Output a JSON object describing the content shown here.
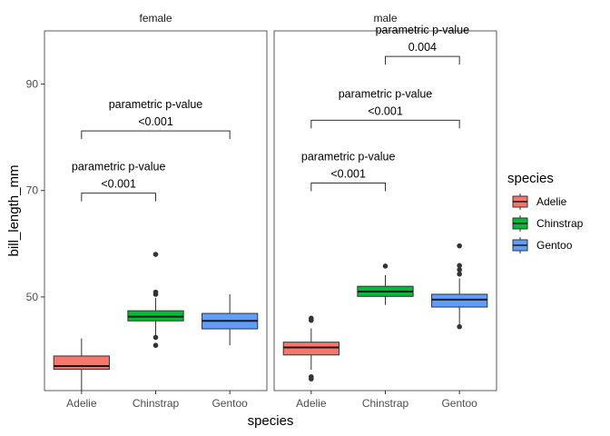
{
  "chart_data": {
    "type": "box",
    "xlabel": "species",
    "ylabel": "bill_length_mm",
    "ylim": [
      32.4,
      100
    ],
    "yticks": [
      50,
      70,
      90
    ],
    "categories": [
      "Adelie",
      "Chinstrap",
      "Gentoo"
    ],
    "legend": {
      "title": "species",
      "position": "right",
      "entries": [
        {
          "label": "Adelie",
          "color": "#F8766D"
        },
        {
          "label": "Chinstrap",
          "color": "#00BA38"
        },
        {
          "label": "Gentoo",
          "color": "#619CFF"
        }
      ]
    },
    "panels": [
      {
        "name": "female",
        "boxes": [
          {
            "category": "Adelie",
            "min": 32.1,
            "q1": 36.4,
            "median": 37.0,
            "q3": 38.9,
            "max": 42.2,
            "outliers": []
          },
          {
            "category": "Chinstrap",
            "min": 42.5,
            "q1": 45.5,
            "median": 46.3,
            "q3": 47.4,
            "max": 49.8,
            "outliers": [
              40.9,
              42.4,
              50.5,
              50.9,
              58.0
            ]
          },
          {
            "category": "Gentoo",
            "min": 40.9,
            "q1": 44.0,
            "median": 45.5,
            "q3": 46.9,
            "max": 50.5,
            "outliers": []
          }
        ],
        "comparisons": [
          {
            "from": "Adelie",
            "to": "Chinstrap",
            "y": 69.5,
            "label_top": "parametric p-value",
            "label_bottom": "<0.001"
          },
          {
            "from": "Adelie",
            "to": "Gentoo",
            "y": 81.2,
            "label_top": "parametric p-value",
            "label_bottom": "<0.001"
          }
        ]
      },
      {
        "name": "male",
        "boxes": [
          {
            "category": "Adelie",
            "min": 36.3,
            "q1": 39.1,
            "median": 40.5,
            "q3": 41.5,
            "max": 44.1,
            "outliers": [
              34.6,
              35.0,
              45.6,
              46.0
            ]
          },
          {
            "category": "Chinstrap",
            "min": 48.5,
            "q1": 50.1,
            "median": 51.0,
            "q3": 52.0,
            "max": 54.1,
            "outliers": [
              55.8
            ]
          },
          {
            "category": "Gentoo",
            "min": 44.4,
            "q1": 48.1,
            "median": 49.5,
            "q3": 50.5,
            "max": 53.5,
            "outliers": [
              44.4,
              54.3,
              55.1,
              55.9,
              59.6
            ]
          }
        ],
        "comparisons": [
          {
            "from": "Adelie",
            "to": "Chinstrap",
            "y": 71.4,
            "label_top": "parametric p-value",
            "label_bottom": "<0.001"
          },
          {
            "from": "Adelie",
            "to": "Gentoo",
            "y": 83.2,
            "label_top": "parametric p-value",
            "label_bottom": "<0.001"
          },
          {
            "from": "Chinstrap",
            "to": "Gentoo",
            "y": 95.2,
            "label_top": "parametric p-value",
            "label_bottom": "0.004"
          }
        ]
      }
    ]
  }
}
